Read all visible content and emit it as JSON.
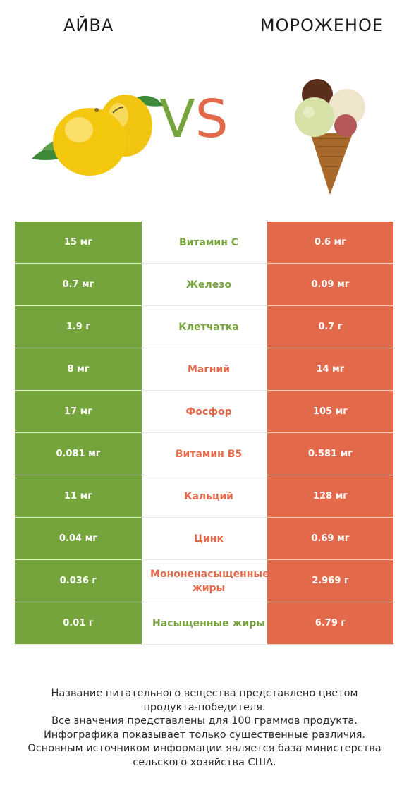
{
  "header": {
    "left_title": "АЙВА",
    "right_title": "МОРОЖЕНОЕ",
    "vs_v": "V",
    "vs_s": "S"
  },
  "colors": {
    "left_winner": "#75a33c",
    "right_winner": "#e3694b"
  },
  "rows": [
    {
      "left": "15 мг",
      "nutrient": "Витамин C",
      "right": "0.6 мг",
      "winner": "left"
    },
    {
      "left": "0.7 мг",
      "nutrient": "Железо",
      "right": "0.09 мг",
      "winner": "left"
    },
    {
      "left": "1.9 г",
      "nutrient": "Клетчатка",
      "right": "0.7 г",
      "winner": "left"
    },
    {
      "left": "8 мг",
      "nutrient": "Магний",
      "right": "14 мг",
      "winner": "right"
    },
    {
      "left": "17 мг",
      "nutrient": "Фосфор",
      "right": "105 мг",
      "winner": "right"
    },
    {
      "left": "0.081 мг",
      "nutrient": "Витамин B5",
      "right": "0.581 мг",
      "winner": "right"
    },
    {
      "left": "11 мг",
      "nutrient": "Кальций",
      "right": "128 мг",
      "winner": "right"
    },
    {
      "left": "0.04 мг",
      "nutrient": "Цинк",
      "right": "0.69 мг",
      "winner": "right"
    },
    {
      "left": "0.036 г",
      "nutrient": "Мононенасыщенные жиры",
      "right": "2.969 г",
      "winner": "right"
    },
    {
      "left": "0.01 г",
      "nutrient": "Насыщенные жиры",
      "right": "6.79 г",
      "winner": "left"
    }
  ],
  "footer": {
    "lines": [
      "Название питательного вещества представлено цветом",
      "продукта-победителя.",
      "Все значения представлены для 100 граммов продукта.",
      "Инфографика показывает только существенные различия.",
      "Основным источником информации является база министерства",
      "сельского хозяйства США."
    ]
  },
  "images": {
    "left": "quince-image",
    "right": "ice-cream-cone-image"
  }
}
